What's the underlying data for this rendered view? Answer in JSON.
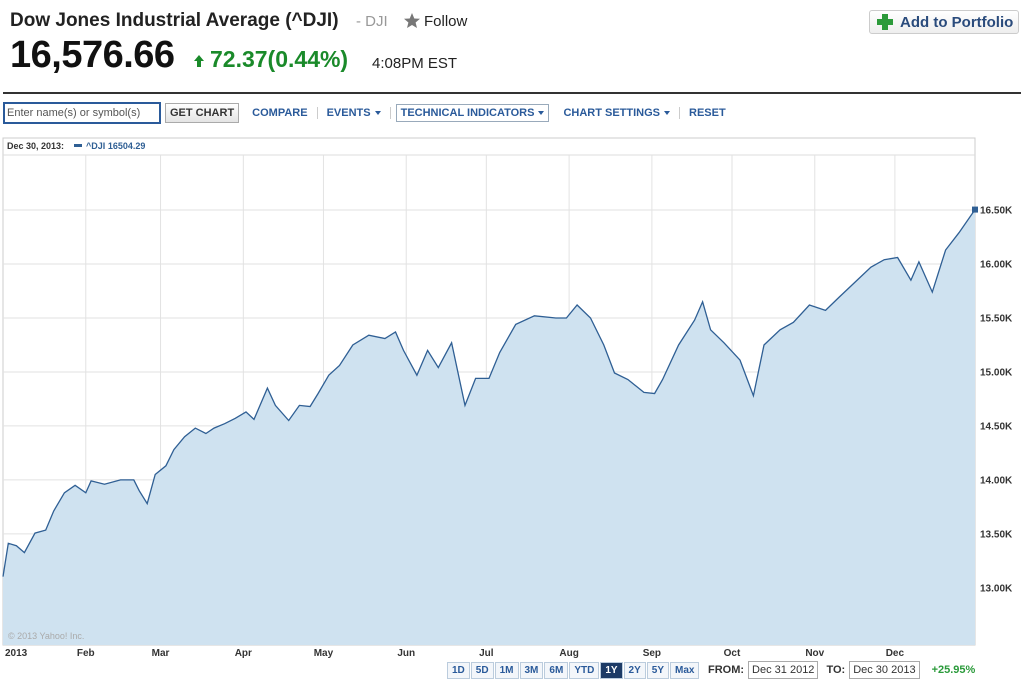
{
  "header": {
    "title": "Dow Jones Industrial Average (^DJI)",
    "symbol": "- DJI",
    "follow": "Follow",
    "price": "16,576.66",
    "change": "72.37(0.44%)",
    "time": "4:08PM EST",
    "add_button": "Add to Portfolio"
  },
  "toolbar": {
    "input_placeholder": "Enter name(s) or symbol(s)",
    "get_chart": "GET CHART",
    "compare": "COMPARE",
    "events": "EVENTS",
    "technical_indicators": "TECHNICAL INDICATORS",
    "chart_settings": "CHART SETTINGS",
    "reset": "RESET"
  },
  "chart_data": {
    "type": "area",
    "legend_date": "Dec 30, 2013:",
    "copyright": "© 2013 Yahoo! Inc.",
    "x": [
      0,
      2,
      5,
      8,
      12,
      16,
      19,
      23,
      27,
      31,
      33,
      38,
      44,
      49,
      51,
      54,
      57,
      61,
      64,
      68,
      72,
      76,
      79,
      83,
      87,
      91,
      94,
      99,
      102,
      107,
      111,
      115,
      118,
      122,
      126,
      131,
      137,
      143,
      147,
      150,
      155,
      159,
      163,
      168,
      173,
      177,
      182,
      186,
      192,
      199,
      207,
      211,
      215,
      220,
      225,
      229,
      234,
      240,
      244,
      247,
      253,
      259,
      262,
      265,
      270,
      276,
      281,
      285,
      291,
      296,
      302,
      308,
      313,
      319,
      325,
      330,
      335,
      340,
      343,
      348,
      353,
      358,
      364
    ],
    "series": [
      {
        "name": "^DJI",
        "color": "#2f5f94",
        "fill": "#cfe2f0",
        "values": [
          13104,
          13412,
          13390,
          13326,
          13507,
          13535,
          13712,
          13880,
          13950,
          13880,
          13990,
          13960,
          14000,
          14000,
          13900,
          13780,
          14050,
          14130,
          14280,
          14400,
          14480,
          14430,
          14480,
          14520,
          14570,
          14630,
          14560,
          14850,
          14690,
          14550,
          14690,
          14680,
          14800,
          14970,
          15060,
          15250,
          15340,
          15310,
          15370,
          15200,
          14970,
          15200,
          15040,
          15270,
          14690,
          14940,
          14940,
          15180,
          15440,
          15520,
          15500,
          15500,
          15620,
          15500,
          15250,
          14990,
          14930,
          14810,
          14800,
          14930,
          15250,
          15480,
          15650,
          15390,
          15270,
          15110,
          14780,
          15250,
          15390,
          15460,
          15620,
          15570,
          15690,
          15830,
          15970,
          16040,
          16060,
          15850,
          16020,
          15740,
          16130,
          16290,
          16504.29
        ]
      }
    ],
    "xlim": [
      0,
      364
    ],
    "xticks": [
      {
        "value": 0,
        "label": "2013"
      },
      {
        "value": 31,
        "label": "Feb"
      },
      {
        "value": 59,
        "label": "Mar"
      },
      {
        "value": 90,
        "label": "Apr"
      },
      {
        "value": 120,
        "label": "May"
      },
      {
        "value": 151,
        "label": "Jun"
      },
      {
        "value": 181,
        "label": "Jul"
      },
      {
        "value": 212,
        "label": "Aug"
      },
      {
        "value": 243,
        "label": "Sep"
      },
      {
        "value": 273,
        "label": "Oct"
      },
      {
        "value": 304,
        "label": "Nov"
      },
      {
        "value": 334,
        "label": "Dec"
      }
    ],
    "ylim": [
      12470,
      17010
    ],
    "yticks": [
      {
        "value": 13000,
        "label": "13.00K"
      },
      {
        "value": 13500,
        "label": "13.50K"
      },
      {
        "value": 14000,
        "label": "14.00K"
      },
      {
        "value": 14500,
        "label": "14.50K"
      },
      {
        "value": 15000,
        "label": "15.00K"
      },
      {
        "value": 15500,
        "label": "15.50K"
      },
      {
        "value": 16000,
        "label": "16.00K"
      },
      {
        "value": 16500,
        "label": "16.50K"
      }
    ],
    "grid": true
  },
  "footer": {
    "ranges": [
      "1D",
      "5D",
      "1M",
      "3M",
      "6M",
      "YTD",
      "1Y",
      "2Y",
      "5Y",
      "Max"
    ],
    "active_range": "1Y",
    "from_label": "FROM:",
    "from_date": "Dec 31 2012",
    "to_label": "TO:",
    "to_date": "Dec 30 2013",
    "change": "+25.95%"
  }
}
